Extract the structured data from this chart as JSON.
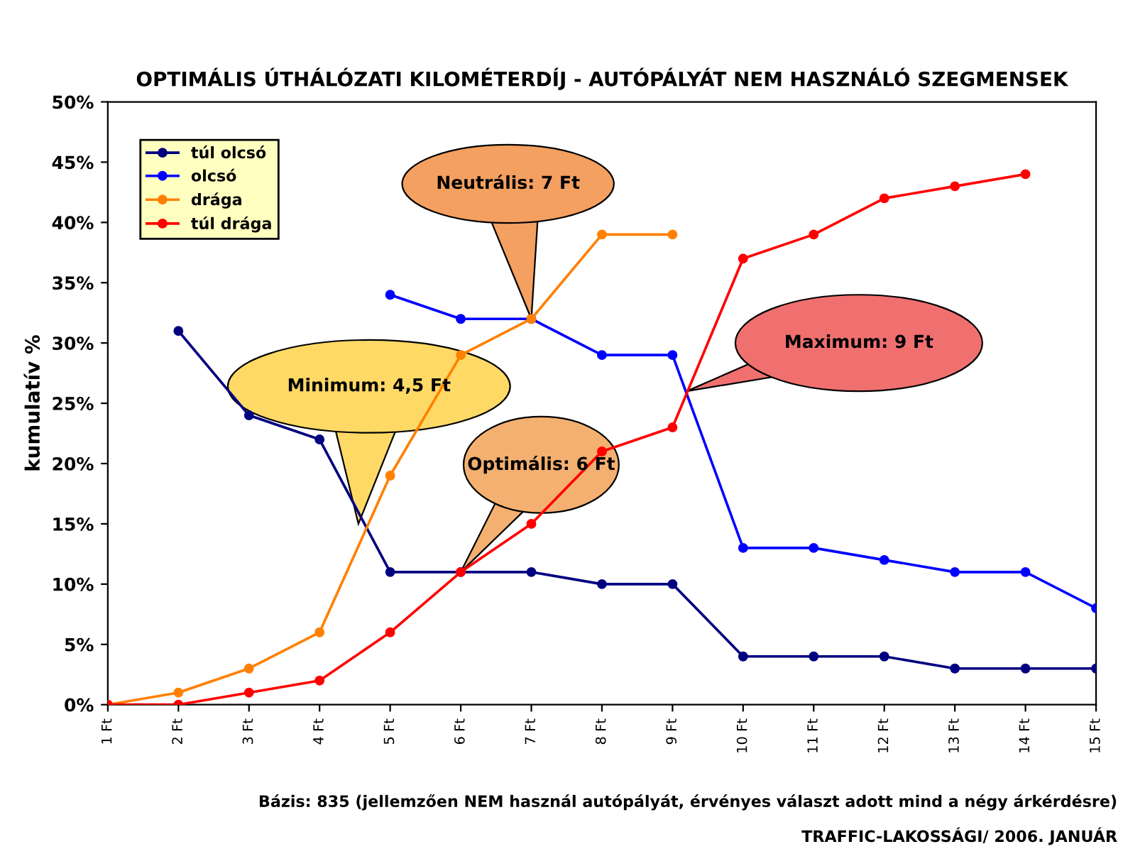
{
  "chart_data": {
    "type": "line",
    "title": "OPTIMÁLIS ÚTHÁLÓZATI KILOMÉTERDÍJ - AUTÓPÁLYÁT NEM HASZNÁLÓ SZEGMENSEK",
    "ylabel": "kumulatív %",
    "categories": [
      "1 Ft",
      "2 Ft",
      "3 Ft",
      "4 Ft",
      "5 Ft",
      "6 Ft",
      "7 Ft",
      "8 Ft",
      "9 Ft",
      "10 Ft",
      "11 Ft",
      "12 Ft",
      "13 Ft",
      "14 Ft",
      "15 Ft"
    ],
    "series": [
      {
        "name": "túl olcsó",
        "color": "#000080",
        "values": [
          null,
          31,
          24,
          22,
          11,
          11,
          11,
          10,
          10,
          4,
          4,
          4,
          3,
          3,
          3
        ]
      },
      {
        "name": "olcsó",
        "color": "#0000ff",
        "values": [
          null,
          null,
          null,
          null,
          34,
          32,
          32,
          29,
          29,
          13,
          13,
          12,
          11,
          11,
          8
        ]
      },
      {
        "name": "drága",
        "color": "#ff8000",
        "values": [
          0,
          1,
          3,
          6,
          19,
          29,
          32,
          39,
          39,
          null,
          null,
          null,
          null,
          null,
          null
        ]
      },
      {
        "name": "túl drága",
        "color": "#ff0000",
        "values": [
          0,
          0,
          1,
          2,
          6,
          11,
          15,
          21,
          23,
          37,
          39,
          42,
          43,
          44,
          null
        ]
      }
    ],
    "ylim": [
      0,
      50
    ],
    "yticks": [
      {
        "value": 0,
        "label": "0%"
      },
      {
        "value": 5,
        "label": "5%"
      },
      {
        "value": 10,
        "label": "10%"
      },
      {
        "value": 15,
        "label": "15%"
      },
      {
        "value": 20,
        "label": "20%"
      },
      {
        "value": 25,
        "label": "25%"
      },
      {
        "value": 30,
        "label": "30%"
      },
      {
        "value": 35,
        "label": "35%"
      },
      {
        "value": 40,
        "label": "40%"
      },
      {
        "value": 45,
        "label": "45%"
      },
      {
        "value": 50,
        "label": "50%"
      }
    ],
    "grid": false,
    "legend": "top left",
    "marker": "circle",
    "line_style": "solid",
    "annotations": [
      "Neutrális: 7 Ft",
      "Minimum: 4,5 Ft",
      "Optimális: 6 Ft",
      "Maximum: 9 Ft",
      "Bázis: 835 (jellemzően NEM használ autópályát, érvényes választ adott mind a négy árkérdésre)",
      "TRAFFIC-LAKOSSÁGI/ 2006. JANUÁR"
    ]
  }
}
